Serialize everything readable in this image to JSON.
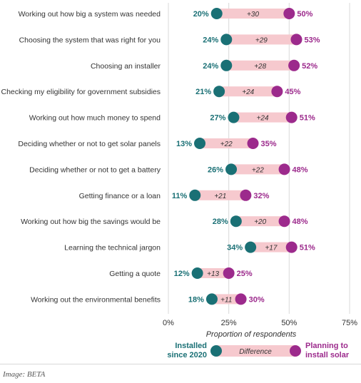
{
  "chart_data": {
    "type": "dumbbell",
    "xlabel": "Proportion of respondents",
    "xlim": [
      0,
      75
    ],
    "xticks": [
      "0%",
      "25%",
      "50%",
      "75%"
    ],
    "xtick_values": [
      0,
      25,
      50,
      75
    ],
    "colors": {
      "installed": "#1a7075",
      "planning": "#9c2a8c",
      "bar": "#f6c9ce",
      "grid": "#d9d9d9"
    },
    "categories": [
      "Working out how big a system was needed",
      "Choosing the system that was right for you",
      "Choosing an installer",
      "Checking my eligibility for government subsidies",
      "Working out how much money to spend",
      "Deciding whether or not to get solar panels",
      "Deciding whether or not to get a battery",
      "Getting finance or a loan",
      "Working out how big the savings would be",
      "Learning the technical jargon",
      "Getting a quote",
      "Working out the environmental benefits"
    ],
    "series": [
      {
        "name": "Installed since 2020",
        "values": [
          20,
          24,
          24,
          21,
          27,
          13,
          26,
          11,
          28,
          34,
          12,
          18
        ],
        "labels": [
          "20%",
          "24%",
          "24%",
          "21%",
          "27%",
          "13%",
          "26%",
          "11%",
          "28%",
          "34%",
          "12%",
          "18%"
        ]
      },
      {
        "name": "Planning to install solar",
        "values": [
          50,
          53,
          52,
          45,
          51,
          35,
          48,
          32,
          48,
          51,
          25,
          30
        ],
        "labels": [
          "50%",
          "53%",
          "52%",
          "45%",
          "51%",
          "35%",
          "48%",
          "32%",
          "48%",
          "51%",
          "25%",
          "30%"
        ]
      }
    ],
    "differences": [
      "+30",
      "+29",
      "+28",
      "+24",
      "+24",
      "+22",
      "+22",
      "+21",
      "+20",
      "+17",
      "+13",
      "+11"
    ],
    "legend": {
      "installed_line1": "Installed",
      "installed_line2": "since 2020",
      "difference": "Difference",
      "planning_line1": "Planning to",
      "planning_line2": "install solar"
    }
  },
  "caption": "Image: BETA"
}
